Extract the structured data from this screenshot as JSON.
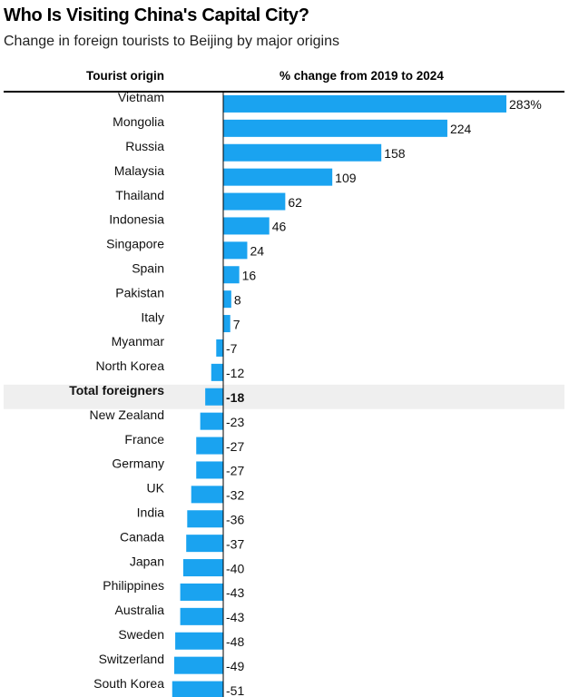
{
  "header": {
    "title": "Who Is Visiting China's Capital City?",
    "subtitle": "Change in foreign tourists to Beijing by major origins"
  },
  "columns": {
    "origin": "Tourist origin",
    "value": "% change from 2019 to 2024"
  },
  "colors": {
    "bar": "#1aa3f0",
    "highlight_row": "#efefef",
    "axis": "#000000"
  },
  "chart_data": {
    "type": "bar",
    "orientation": "horizontal",
    "title": "Who Is Visiting China's Capital City?",
    "subtitle": "Change in foreign tourists to Beijing by major origins",
    "xlabel": "% change from 2019 to 2024",
    "ylabel": "Tourist origin",
    "xlim": [
      -51,
      283
    ],
    "grid": false,
    "categories": [
      "Vietnam",
      "Mongolia",
      "Russia",
      "Malaysia",
      "Thailand",
      "Indonesia",
      "Singapore",
      "Spain",
      "Pakistan",
      "Italy",
      "Myanmar",
      "North Korea",
      "Total foreigners",
      "New Zealand",
      "France",
      "Germany",
      "UK",
      "India",
      "Canada",
      "Japan",
      "Philippines",
      "Australia",
      "Sweden",
      "Switzerland",
      "South Korea"
    ],
    "values": [
      283,
      224,
      158,
      109,
      62,
      46,
      24,
      16,
      8,
      7,
      -7,
      -12,
      -18,
      -23,
      -27,
      -27,
      -32,
      -36,
      -37,
      -40,
      -43,
      -43,
      -48,
      -49,
      -51
    ],
    "value_labels": [
      "283%",
      "224",
      "158",
      "109",
      "62",
      "46",
      "24",
      "16",
      "8",
      "7",
      "-7",
      "-12",
      "-18",
      "-23",
      "-27",
      "-27",
      "-32",
      "-36",
      "-37",
      "-40",
      "-43",
      "-43",
      "-48",
      "-49",
      "-51"
    ],
    "highlighted": [
      "Total foreigners"
    ]
  }
}
